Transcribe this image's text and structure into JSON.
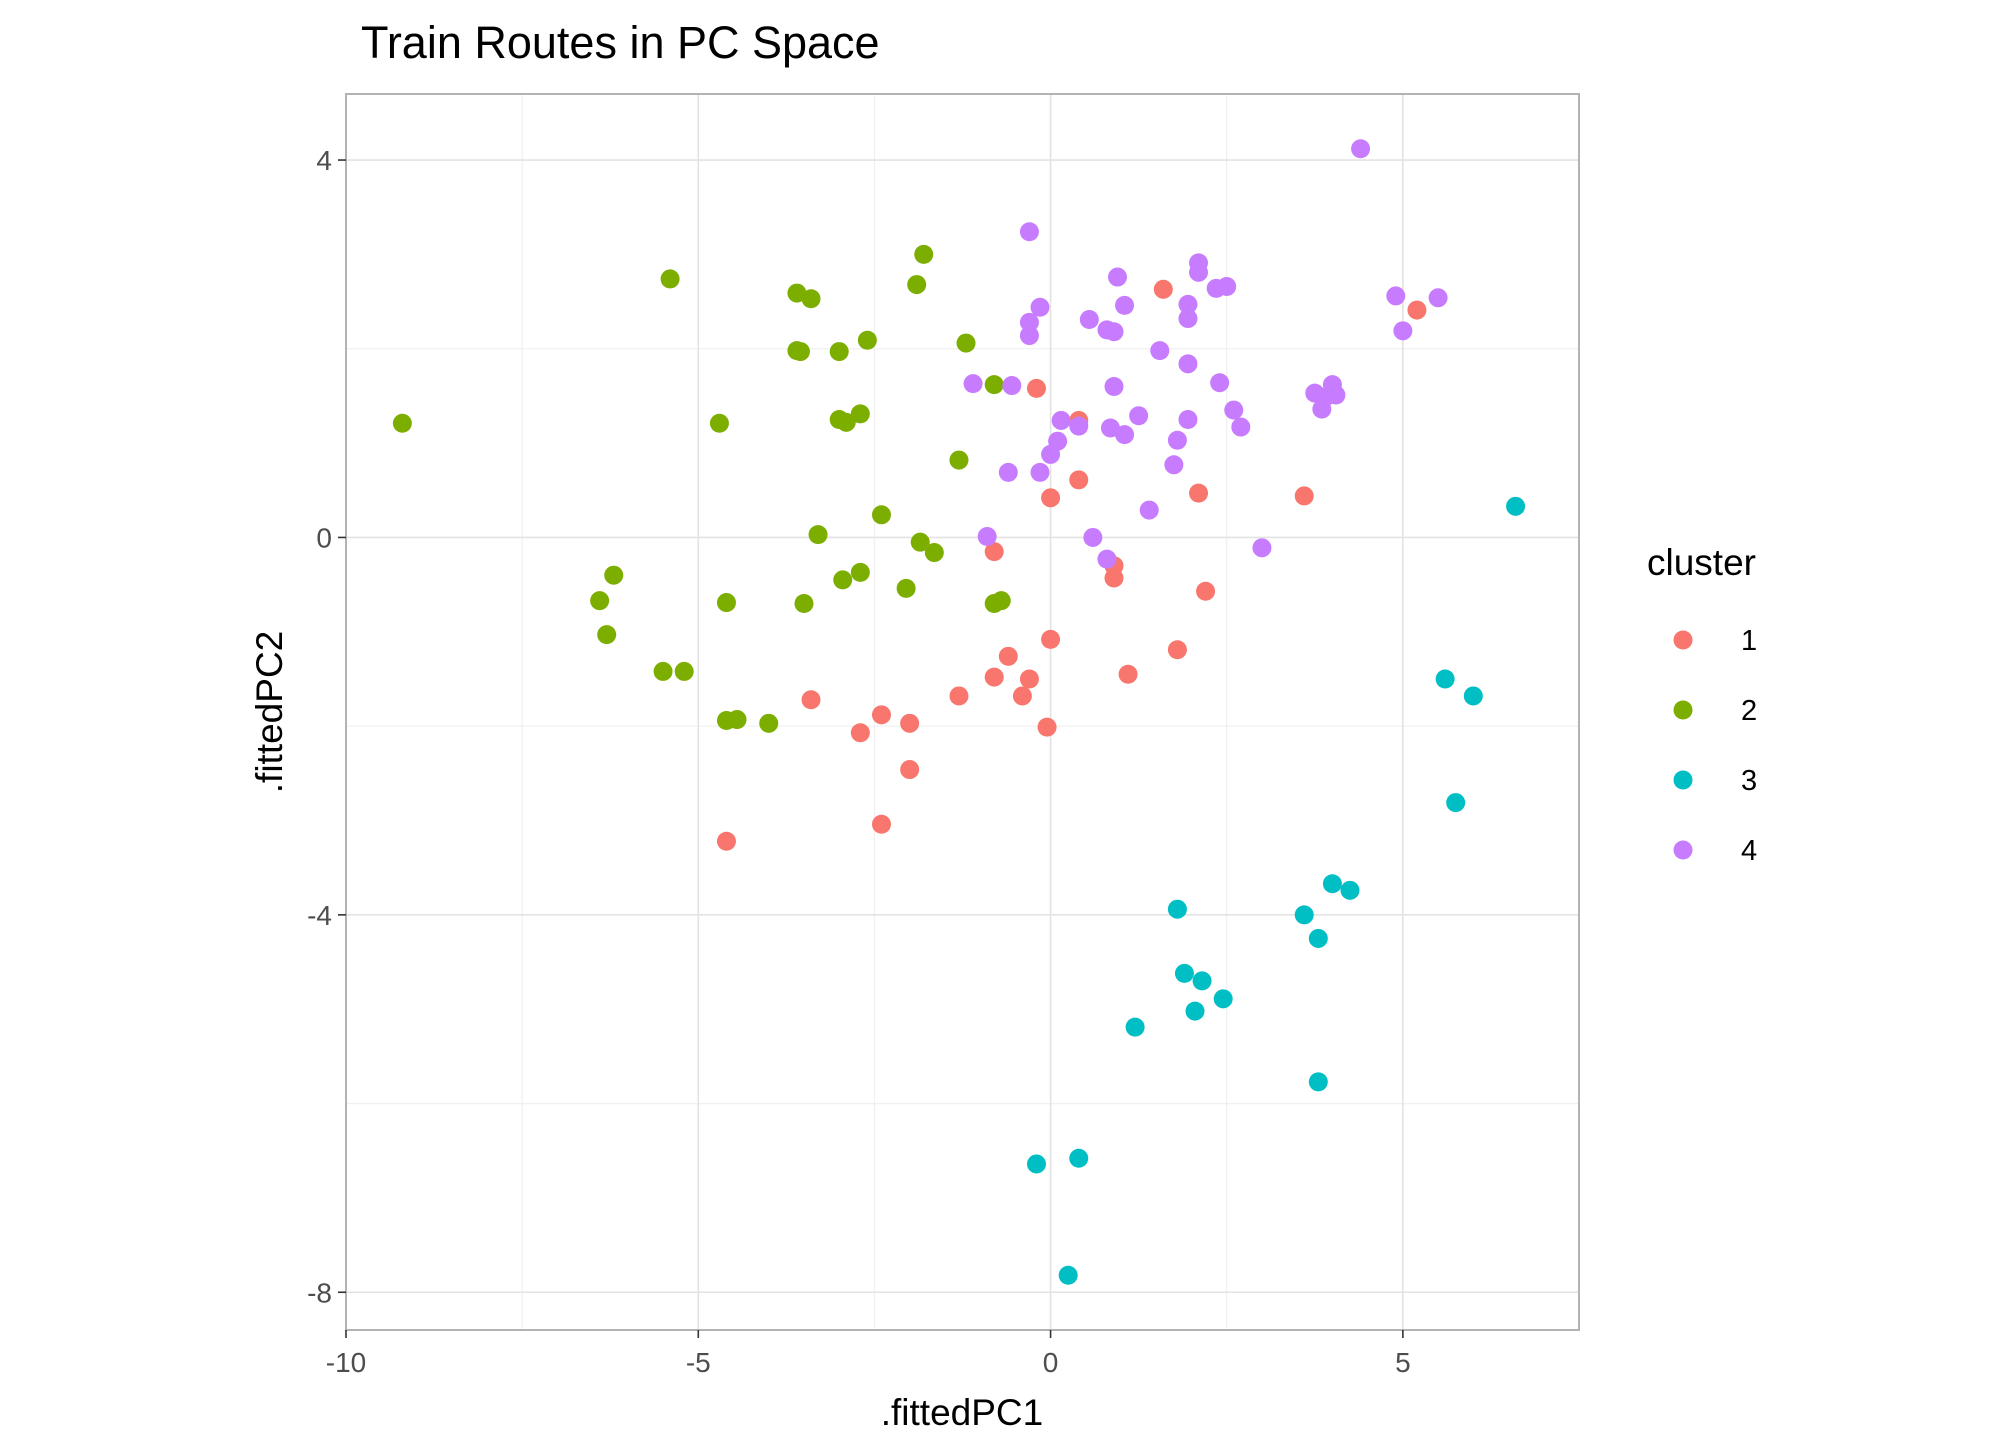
{
  "chart_data": {
    "type": "scatter",
    "title": "Train Routes in PC Space",
    "xlabel": ".fittedPC1",
    "ylabel": ".fittedPC2",
    "xlim": [
      -10,
      7.5
    ],
    "ylim": [
      -8.4,
      4.7
    ],
    "x_ticks": [
      -10,
      -5,
      0,
      5
    ],
    "y_ticks": [
      4,
      0,
      -4,
      -8
    ],
    "x_tick_labels": [
      "-10",
      "-5",
      "0",
      "5"
    ],
    "y_tick_labels": [
      "4",
      "0",
      "-4",
      "-8"
    ],
    "grid": true,
    "legend": {
      "title": "cluster",
      "placement": "right"
    },
    "series": [
      {
        "name": "1",
        "color": "#F8766D",
        "points": [
          [
            -0.2,
            1.58
          ],
          [
            0.4,
            1.24
          ],
          [
            0.4,
            0.61
          ],
          [
            0.0,
            0.42
          ],
          [
            1.6,
            2.63
          ],
          [
            5.2,
            2.41
          ],
          [
            2.1,
            0.47
          ],
          [
            3.6,
            0.44
          ],
          [
            -0.8,
            -0.15
          ],
          [
            0.9,
            -0.3
          ],
          [
            0.9,
            -0.43
          ],
          [
            2.2,
            -0.57
          ],
          [
            0.0,
            -1.08
          ],
          [
            -0.6,
            -1.26
          ],
          [
            1.8,
            -1.19
          ],
          [
            1.1,
            -1.45
          ],
          [
            -0.8,
            -1.48
          ],
          [
            -0.3,
            -1.5
          ],
          [
            -0.4,
            -1.68
          ],
          [
            -1.3,
            -1.68
          ],
          [
            -3.4,
            -1.72
          ],
          [
            -2.4,
            -1.88
          ],
          [
            -2.0,
            -1.97
          ],
          [
            -0.05,
            -2.01
          ],
          [
            -2.7,
            -2.07
          ],
          [
            -2.0,
            -2.46
          ],
          [
            -2.4,
            -3.04
          ],
          [
            -4.6,
            -3.22
          ]
        ]
      },
      {
        "name": "2",
        "color": "#7CAE00",
        "points": [
          [
            -5.4,
            2.74
          ],
          [
            -3.6,
            2.59
          ],
          [
            -3.4,
            2.53
          ],
          [
            -1.8,
            3.0
          ],
          [
            -1.9,
            2.68
          ],
          [
            -3.6,
            1.98
          ],
          [
            -3.55,
            1.97
          ],
          [
            -3.0,
            1.97
          ],
          [
            -2.6,
            2.09
          ],
          [
            -1.2,
            2.06
          ],
          [
            -0.8,
            1.62
          ],
          [
            -9.2,
            1.21
          ],
          [
            -4.7,
            1.21
          ],
          [
            -3.0,
            1.25
          ],
          [
            -2.9,
            1.22
          ],
          [
            -2.7,
            1.31
          ],
          [
            -1.3,
            0.82
          ],
          [
            -2.4,
            0.24
          ],
          [
            -3.3,
            0.03
          ],
          [
            -1.85,
            -0.05
          ],
          [
            -1.65,
            -0.16
          ],
          [
            -2.7,
            -0.37
          ],
          [
            -2.95,
            -0.45
          ],
          [
            -6.2,
            -0.4
          ],
          [
            -6.4,
            -0.67
          ],
          [
            -4.6,
            -0.69
          ],
          [
            -3.5,
            -0.7
          ],
          [
            -2.05,
            -0.54
          ],
          [
            -0.8,
            -0.7
          ],
          [
            -0.7,
            -0.67
          ],
          [
            -6.3,
            -1.03
          ],
          [
            -5.5,
            -1.42
          ],
          [
            -5.2,
            -1.42
          ],
          [
            -4.6,
            -1.94
          ],
          [
            -4.45,
            -1.93
          ],
          [
            -4.0,
            -1.97
          ]
        ]
      },
      {
        "name": "3",
        "color": "#00BFC4",
        "points": [
          [
            6.6,
            0.33
          ],
          [
            5.6,
            -1.5
          ],
          [
            6.0,
            -1.68
          ],
          [
            5.75,
            -2.81
          ],
          [
            4.0,
            -3.67
          ],
          [
            4.25,
            -3.74
          ],
          [
            1.8,
            -3.94
          ],
          [
            3.6,
            -4.0
          ],
          [
            3.8,
            -4.25
          ],
          [
            1.9,
            -4.62
          ],
          [
            2.15,
            -4.7
          ],
          [
            2.45,
            -4.89
          ],
          [
            2.05,
            -5.02
          ],
          [
            1.2,
            -5.19
          ],
          [
            3.8,
            -5.77
          ],
          [
            0.4,
            -6.58
          ],
          [
            -0.2,
            -6.64
          ],
          [
            0.25,
            -7.82
          ]
        ]
      },
      {
        "name": "4",
        "color": "#C77CFF",
        "points": [
          [
            4.4,
            4.12
          ],
          [
            -0.3,
            3.24
          ],
          [
            2.1,
            2.91
          ],
          [
            2.1,
            2.81
          ],
          [
            0.95,
            2.76
          ],
          [
            2.5,
            2.66
          ],
          [
            2.35,
            2.64
          ],
          [
            4.9,
            2.56
          ],
          [
            5.5,
            2.54
          ],
          [
            -0.15,
            2.44
          ],
          [
            1.05,
            2.46
          ],
          [
            1.95,
            2.47
          ],
          [
            -0.3,
            2.28
          ],
          [
            0.55,
            2.31
          ],
          [
            0.8,
            2.2
          ],
          [
            0.9,
            2.18
          ],
          [
            1.95,
            2.32
          ],
          [
            -0.3,
            2.14
          ],
          [
            5.0,
            2.19
          ],
          [
            1.55,
            1.98
          ],
          [
            1.95,
            1.84
          ],
          [
            -1.1,
            1.63
          ],
          [
            -0.55,
            1.61
          ],
          [
            0.9,
            1.6
          ],
          [
            2.4,
            1.64
          ],
          [
            4.0,
            1.62
          ],
          [
            3.75,
            1.53
          ],
          [
            3.9,
            1.49
          ],
          [
            4.05,
            1.51
          ],
          [
            3.85,
            1.36
          ],
          [
            2.6,
            1.35
          ],
          [
            0.15,
            1.24
          ],
          [
            1.25,
            1.29
          ],
          [
            0.4,
            1.18
          ],
          [
            0.85,
            1.16
          ],
          [
            1.05,
            1.09
          ],
          [
            1.95,
            1.25
          ],
          [
            2.7,
            1.17
          ],
          [
            0.1,
            1.02
          ],
          [
            1.8,
            1.03
          ],
          [
            0.0,
            0.88
          ],
          [
            1.75,
            0.77
          ],
          [
            -0.6,
            0.69
          ],
          [
            -0.15,
            0.69
          ],
          [
            1.4,
            0.29
          ],
          [
            -0.9,
            0.01
          ],
          [
            0.6,
            0.0
          ],
          [
            3.0,
            -0.11
          ],
          [
            0.8,
            -0.23
          ]
        ]
      }
    ]
  }
}
